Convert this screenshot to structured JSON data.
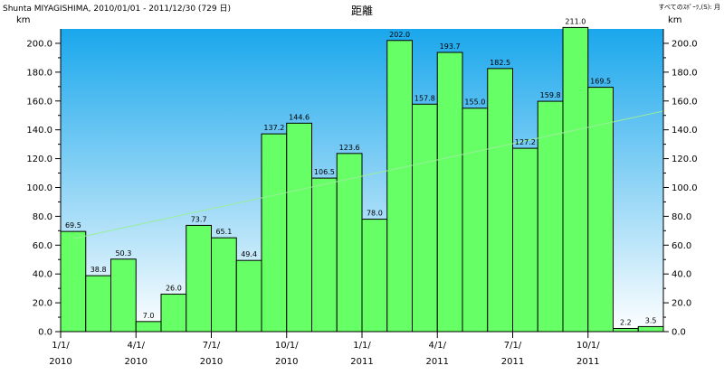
{
  "header": {
    "left_text": "Shunta MIYAGISHIMA, 2010/01/01 - 2011/12/30 (729 日)",
    "right_text": "すべてのｽﾎﾟｰﾂ,(S): 月"
  },
  "chart_data": {
    "type": "bar",
    "title": "距離",
    "ylabel": "km",
    "ylabel_right": "km",
    "ylim": [
      0,
      210
    ],
    "yticks": [
      "0.0",
      "20.0",
      "40.0",
      "60.0",
      "80.0",
      "100.0",
      "120.0",
      "140.0",
      "160.0",
      "180.0",
      "200.0"
    ],
    "categories": [
      "2010-01",
      "2010-02",
      "2010-03",
      "2010-04",
      "2010-05",
      "2010-06",
      "2010-07",
      "2010-08",
      "2010-09",
      "2010-10",
      "2010-11",
      "2010-12",
      "2011-01",
      "2011-02",
      "2011-03",
      "2011-04",
      "2011-05",
      "2011-06",
      "2011-07",
      "2011-08",
      "2011-09",
      "2011-10",
      "2011-11",
      "2011-12"
    ],
    "values": [
      69.5,
      38.8,
      50.3,
      7.0,
      26.0,
      73.7,
      65.1,
      49.4,
      137.2,
      144.6,
      106.5,
      123.6,
      78.0,
      202.0,
      157.8,
      193.7,
      155.0,
      182.5,
      127.2,
      159.8,
      211.0,
      169.5,
      2.2,
      3.5
    ],
    "value_labels": [
      "69.5",
      "38.8",
      "50.3",
      "7.0",
      "26.0",
      "73.7",
      "65.1",
      "49.4",
      "137.2",
      "144.6",
      "106.5",
      "123.6",
      "78.0",
      "202.0",
      "157.8",
      "193.7",
      "155.0",
      "182.5",
      "127.2",
      "159.8",
      "211.0",
      "169.5",
      "2.2",
      "3.5"
    ],
    "xtick_labels": [
      {
        "line1": "1/1/",
        "line2": "2010",
        "index": 0
      },
      {
        "line1": "4/1/",
        "line2": "2010",
        "index": 3
      },
      {
        "line1": "7/1/",
        "line2": "2010",
        "index": 6
      },
      {
        "line1": "10/1/",
        "line2": "2010",
        "index": 9
      },
      {
        "line1": "1/1/",
        "line2": "2011",
        "index": 12
      },
      {
        "line1": "4/1/",
        "line2": "2011",
        "index": 15
      },
      {
        "line1": "7/1/",
        "line2": "2011",
        "index": 18
      },
      {
        "line1": "10/1/",
        "line2": "2011",
        "index": 21
      }
    ],
    "trend_line": {
      "start_value": 64.5,
      "end_value": 153.0
    },
    "colors": {
      "bar": "#66ff66",
      "bar_border": "#000000",
      "bg_top": "#1aa7ec",
      "bg_bottom": "#ffffff",
      "trend": "#99ee99"
    }
  }
}
